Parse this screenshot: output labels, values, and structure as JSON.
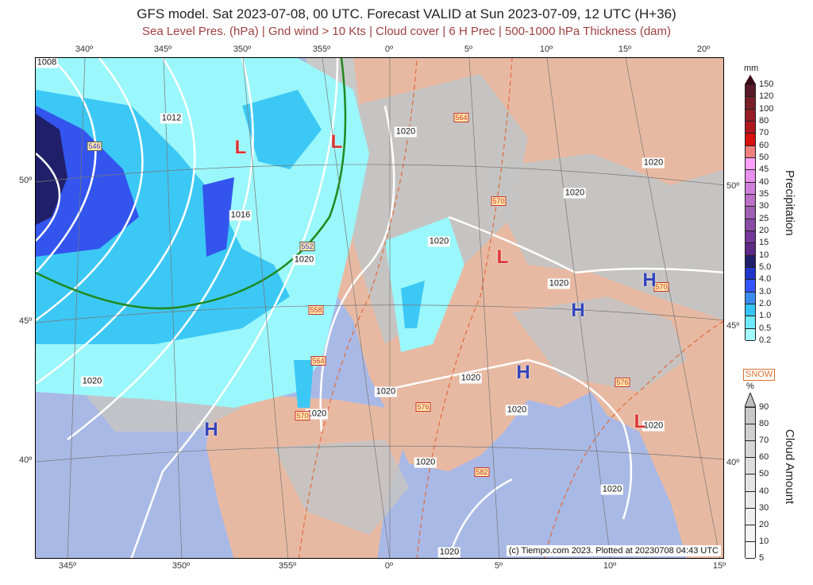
{
  "header": {
    "title": "GFS model. Sat 2023-07-08, 00 UTC. Forecast VALID at Sun 2023-07-09, 12 UTC (H+36)",
    "subtitle": "Sea Level Pres. (hPa) | Gnd wind > 10 Kts | Cloud cover | 6 H Prec | 500-1000 hPa Thickness (dam)"
  },
  "axes": {
    "top": [
      "340º",
      "345º",
      "350º",
      "355º",
      "0º",
      "5º",
      "10º",
      "15º",
      "20º"
    ],
    "bottom": [
      "345º",
      "350º",
      "355º",
      "0º",
      "5º",
      "10º",
      "15º"
    ],
    "left": [
      "50º",
      "45º",
      "40º"
    ],
    "right": [
      "50º",
      "45º",
      "40º"
    ]
  },
  "map": {
    "colors": {
      "sea": "#a9b9e6",
      "land": "#e8b9a2",
      "cloud": "#c4c4c4",
      "precip_light": "#9af7fb",
      "precip_mid": "#3cc8f5",
      "precip_heavy": "#3355ee",
      "isobar": "#ffffff",
      "freezing_line": "#1e8a1e"
    },
    "isobars": [
      "1008",
      "1012",
      "1016",
      "1020",
      "1020",
      "1020",
      "1020",
      "1020",
      "1020",
      "1020",
      "1020",
      "1020",
      "1020",
      "1020",
      "1020",
      "1020",
      "1020",
      "1020"
    ],
    "thickness": [
      "546",
      "552",
      "558",
      "564",
      "570",
      "576",
      "582",
      "564",
      "570",
      "570",
      "576"
    ],
    "pressure_centers": [
      "L",
      "L",
      "L",
      "L",
      "H",
      "H",
      "H",
      "H"
    ],
    "credit": "(c) Tiempo.com 2023. Plotted at 20230708 04:43 UTC"
  },
  "legend": {
    "precipitation": {
      "unit": "mm",
      "title": "Precipitation",
      "levels": [
        "150",
        "120",
        "100",
        "80",
        "70",
        "60",
        "50",
        "45",
        "40",
        "35",
        "30",
        "25",
        "20",
        "15",
        "10",
        "5.0",
        "4.0",
        "3.0",
        "2.0",
        "1.0",
        "0.5",
        "0.2"
      ],
      "colors": [
        "#5a1a2a",
        "#7a1f2a",
        "#951c24",
        "#b01820",
        "#d81010",
        "#f08080",
        "#ffa0ff",
        "#e890ee",
        "#d080dc",
        "#bc70c8",
        "#a060b4",
        "#8a4ca4",
        "#74389a",
        "#5e2888",
        "#20206a",
        "#2236cc",
        "#3355ff",
        "#3a8cf0",
        "#36c4f4",
        "#70e8fc",
        "#a0fcff"
      ]
    },
    "snow_label": "SNOW",
    "cloud": {
      "unit": "%",
      "title": "Cloud Amount",
      "levels": [
        "90",
        "80",
        "70",
        "60",
        "50",
        "40",
        "30",
        "20",
        "10",
        "5"
      ],
      "colors": [
        "#c8c8c8",
        "#cfcfcf",
        "#d6d6d6",
        "#dddddd",
        "#e4e4e4",
        "#eaeaea",
        "#efefef",
        "#f3f3f3",
        "#f8f8f8"
      ]
    }
  }
}
